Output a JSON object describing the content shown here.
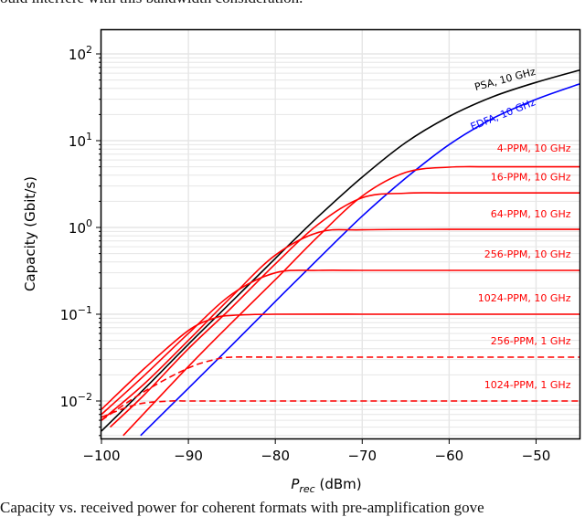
{
  "page": {
    "top_text": "ould interfere with this bandwidth consideration.",
    "caption": "Capacity vs. received power for coherent formats with pre-amplification gove"
  },
  "chart_data": {
    "type": "line",
    "title": "",
    "xlabel": "P_rec (dBm)",
    "xlabel_main": "P",
    "xlabel_sub": "rec",
    "xlabel_unit": " (dBm)",
    "ylabel": "Capacity (Gbit/s)",
    "xlim": [
      -100,
      -45
    ],
    "ylim": [
      0.004,
      200
    ],
    "yscale": "log",
    "grid": true,
    "legend_position": "inline labels at right",
    "x_ticks": [
      -100,
      -90,
      -80,
      -70,
      -60,
      -50
    ],
    "x_tick_labels": [
      "−100",
      "−90",
      "−80",
      "−70",
      "−60",
      "−50"
    ],
    "y_ticks": [
      0.01,
      0.1,
      1,
      10,
      100
    ],
    "y_tick_labels": [
      {
        "base": "10",
        "exp": "−2"
      },
      {
        "base": "10",
        "exp": "−1"
      },
      {
        "base": "10",
        "exp": "0"
      },
      {
        "base": "10",
        "exp": "1"
      },
      {
        "base": "10",
        "exp": "2"
      }
    ],
    "series": [
      {
        "name": "PSA, 10 GHz",
        "color": "#000000",
        "style": "solid",
        "x": [
          -100,
          -95,
          -90,
          -85,
          -80,
          -75,
          -70,
          -65,
          -60,
          -55,
          -50,
          -45
        ],
        "y": [
          0.0045,
          0.014,
          0.045,
          0.14,
          0.44,
          1.35,
          3.8,
          9.5,
          19,
          32,
          47,
          65
        ]
      },
      {
        "name": "EDFA, 10 GHz",
        "color": "#0000ff",
        "style": "solid",
        "x": [
          -95.5,
          -90,
          -85,
          -80,
          -75,
          -70,
          -65,
          -60,
          -55,
          -50,
          -45
        ],
        "y": [
          0.004,
          0.014,
          0.044,
          0.14,
          0.44,
          1.35,
          3.7,
          9,
          18,
          30,
          45
        ]
      },
      {
        "name": "4-PPM, 10 GHz",
        "color": "#ff0000",
        "style": "solid",
        "x": [
          -97.5,
          -90,
          -85,
          -80,
          -75,
          -70,
          -65,
          -60,
          -55,
          -50,
          -45
        ],
        "y": [
          0.004,
          0.025,
          0.08,
          0.25,
          0.8,
          2.3,
          4.3,
          4.95,
          5,
          5,
          5
        ]
      },
      {
        "name": "16-PPM, 10 GHz",
        "color": "#ff0000",
        "style": "solid",
        "x": [
          -99,
          -95,
          -90,
          -85,
          -80,
          -75,
          -70,
          -65,
          -60,
          -50,
          -45
        ],
        "y": [
          0.005,
          0.012,
          0.04,
          0.12,
          0.38,
          1.1,
          2.2,
          2.48,
          2.5,
          2.5,
          2.5
        ]
      },
      {
        "name": "64-PPM, 10 GHz",
        "color": "#ff0000",
        "style": "solid",
        "x": [
          -100,
          -95,
          -90,
          -85,
          -80,
          -75,
          -70,
          -60,
          -50,
          -45
        ],
        "y": [
          0.006,
          0.016,
          0.05,
          0.16,
          0.48,
          0.88,
          0.94,
          0.95,
          0.95,
          0.95
        ]
      },
      {
        "name": "256-PPM, 10 GHz",
        "color": "#ff0000",
        "style": "solid",
        "x": [
          -100,
          -95,
          -90,
          -85,
          -80,
          -75,
          -70,
          -60,
          -50,
          -45
        ],
        "y": [
          0.007,
          0.02,
          0.06,
          0.17,
          0.3,
          0.32,
          0.32,
          0.32,
          0.32,
          0.32
        ]
      },
      {
        "name": "1024-PPM, 10 GHz",
        "color": "#ff0000",
        "style": "solid",
        "x": [
          -100,
          -95,
          -90,
          -87,
          -85,
          -80,
          -70,
          -60,
          -50,
          -45
        ],
        "y": [
          0.008,
          0.024,
          0.065,
          0.09,
          0.097,
          0.1,
          0.1,
          0.1,
          0.1,
          0.1
        ]
      },
      {
        "name": "256-PPM, 1 GHz",
        "color": "#ff0000",
        "style": "dashed",
        "x": [
          -100,
          -95,
          -90,
          -87,
          -85,
          -80,
          -70,
          -60,
          -50,
          -45
        ],
        "y": [
          0.006,
          0.013,
          0.024,
          0.03,
          0.032,
          0.032,
          0.032,
          0.032,
          0.032,
          0.032
        ]
      },
      {
        "name": "1024-PPM, 1 GHz",
        "color": "#ff0000",
        "style": "dashed",
        "x": [
          -100,
          -97,
          -95,
          -92,
          -90,
          -85,
          -70,
          -60,
          -50,
          -45
        ],
        "y": [
          0.0065,
          0.0085,
          0.0095,
          0.01,
          0.01,
          0.01,
          0.01,
          0.01,
          0.01,
          0.01
        ]
      }
    ],
    "annotations": [
      {
        "text": "PSA, 10 GHz",
        "color": "#000000",
        "x": -50,
        "y": 58,
        "rotation": -15
      },
      {
        "text": "EDFA, 10 GHz",
        "color": "#0000ff",
        "x": -50,
        "y": 26,
        "rotation": -22
      },
      {
        "text": "4-PPM, 10 GHz",
        "color": "#ff0000",
        "x": -46,
        "y": 7.5
      },
      {
        "text": "16-PPM, 10 GHz",
        "color": "#ff0000",
        "x": -46,
        "y": 3.5
      },
      {
        "text": "64-PPM, 10 GHz",
        "color": "#ff0000",
        "x": -46,
        "y": 1.3
      },
      {
        "text": "256-PPM, 10 GHz",
        "color": "#ff0000",
        "x": -46,
        "y": 0.45
      },
      {
        "text": "1024-PPM, 10 GHz",
        "color": "#ff0000",
        "x": -46,
        "y": 0.14
      },
      {
        "text": "256-PPM, 1 GHz",
        "color": "#ff0000",
        "x": -46,
        "y": 0.045
      },
      {
        "text": "1024-PPM, 1 GHz",
        "color": "#ff0000",
        "x": -46,
        "y": 0.014
      }
    ]
  }
}
